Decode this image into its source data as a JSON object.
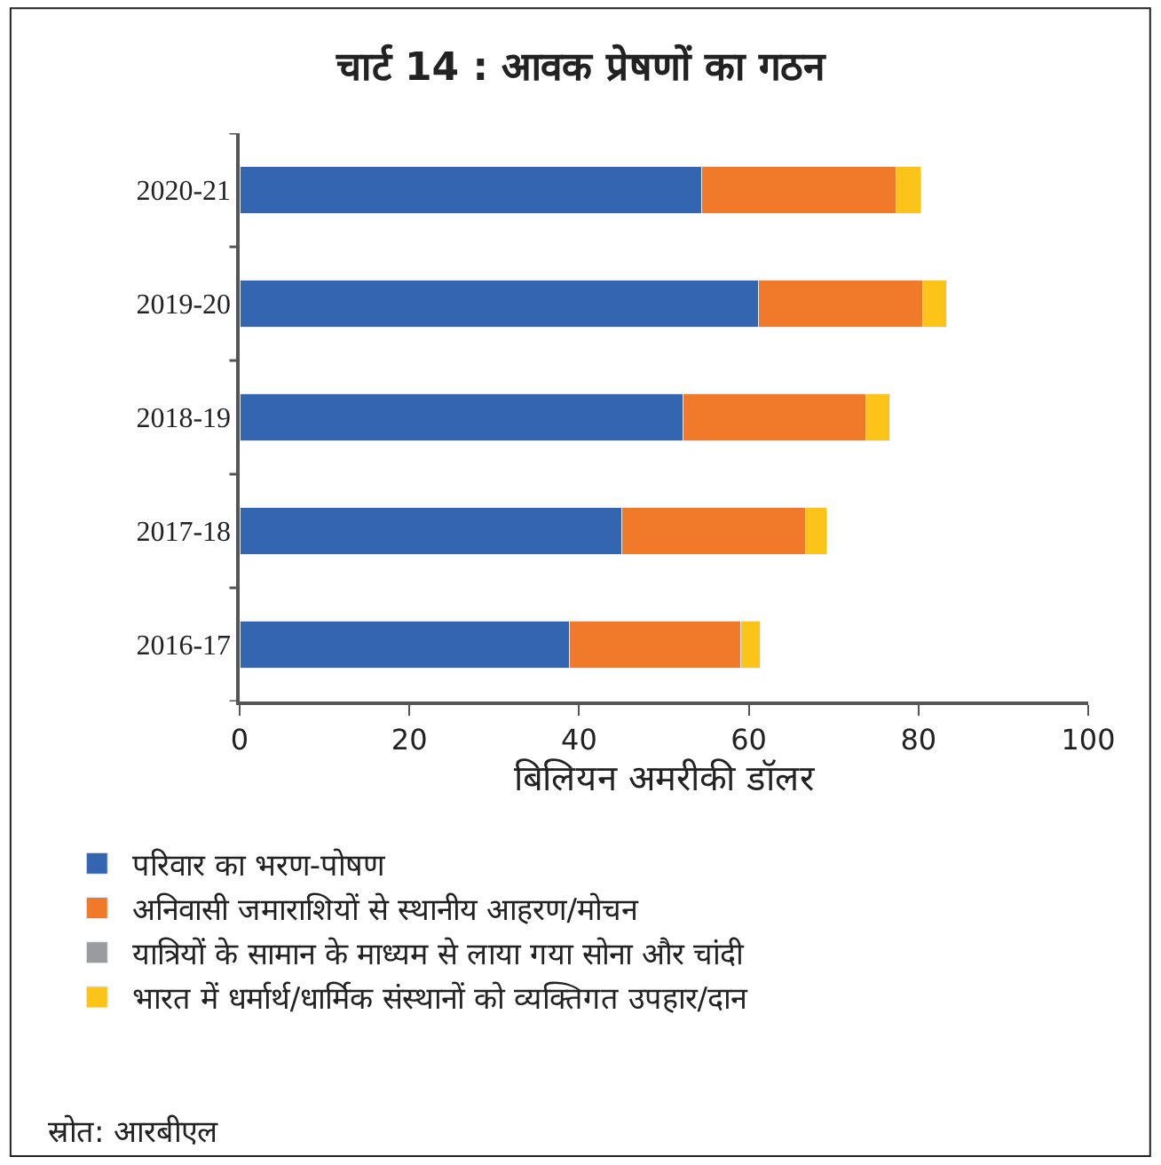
{
  "chart_data": {
    "type": "bar",
    "orientation": "horizontal",
    "stacked": true,
    "title": "चार्ट 14 : आवक प्रेषणों का गठन",
    "xlabel": "बिलियन अमरीकी डॉलर",
    "categories": [
      "2020-21",
      "2019-20",
      "2018-19",
      "2017-18",
      "2016-17"
    ],
    "series": [
      {
        "name": "परिवार का भरण-पोषण",
        "color": "#3465b0",
        "values": [
          54.4,
          61.1,
          52.3,
          45.0,
          38.9
        ]
      },
      {
        "name": "अनिवासी जमाराशियों से स्थानीय आहरण/मोचन",
        "color": "#f07a2a",
        "values": [
          23.0,
          19.4,
          21.5,
          21.7,
          20.1
        ]
      },
      {
        "name": "यात्रियों के सामान के माध्यम से लाया गया सोना और चांदी",
        "color": "#9a9b9d",
        "values": [
          null,
          null,
          null,
          null,
          null
        ]
      },
      {
        "name": "भारत में धर्मार्थ/धार्मिक संस्थानों को व्यक्तिगत उपहार/दान",
        "color": "#fcc419",
        "values": [
          2.9,
          2.8,
          2.8,
          2.5,
          2.3
        ]
      }
    ],
    "xlim": [
      0,
      100
    ],
    "xticks": [
      0,
      20,
      40,
      60,
      80,
      100
    ],
    "legend": "bottom",
    "annotations": [
      "स्रोत: आरबीएल"
    ]
  }
}
